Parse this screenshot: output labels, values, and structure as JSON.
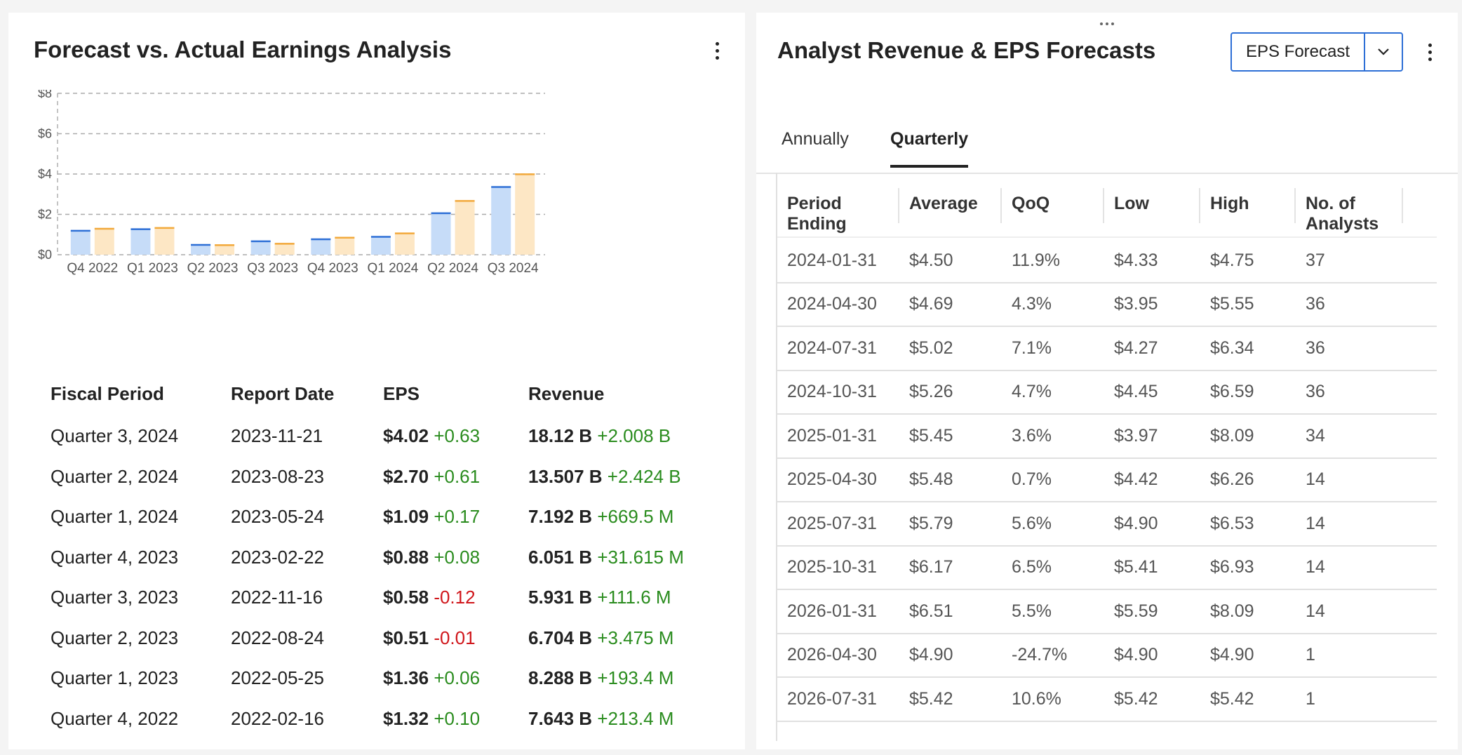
{
  "left": {
    "title": "Forecast vs. Actual Earnings Analysis",
    "table_headers": [
      "Fiscal Period",
      "Report Date",
      "EPS",
      "Revenue"
    ],
    "rows": [
      {
        "period": "Quarter 3, 2024",
        "date": "2023-11-21",
        "eps": "$4.02",
        "eps_diff": "+0.63",
        "eps_dir": "pos",
        "revenue": "18.12 B",
        "rev_diff": "+2.008 B",
        "rev_dir": "pos"
      },
      {
        "period": "Quarter 2, 2024",
        "date": "2023-08-23",
        "eps": "$2.70",
        "eps_diff": "+0.61",
        "eps_dir": "pos",
        "revenue": "13.507 B",
        "rev_diff": "+2.424 B",
        "rev_dir": "pos"
      },
      {
        "period": "Quarter 1, 2024",
        "date": "2023-05-24",
        "eps": "$1.09",
        "eps_diff": "+0.17",
        "eps_dir": "pos",
        "revenue": "7.192 B",
        "rev_diff": "+669.5 M",
        "rev_dir": "pos"
      },
      {
        "period": "Quarter 4, 2023",
        "date": "2023-02-22",
        "eps": "$0.88",
        "eps_diff": "+0.08",
        "eps_dir": "pos",
        "revenue": "6.051 B",
        "rev_diff": "+31.615 M",
        "rev_dir": "pos"
      },
      {
        "period": "Quarter 3, 2023",
        "date": "2022-11-16",
        "eps": "$0.58",
        "eps_diff": "-0.12",
        "eps_dir": "neg",
        "revenue": "5.931 B",
        "rev_diff": "+111.6 M",
        "rev_dir": "pos"
      },
      {
        "period": "Quarter 2, 2023",
        "date": "2022-08-24",
        "eps": "$0.51",
        "eps_diff": "-0.01",
        "eps_dir": "neg",
        "revenue": "6.704 B",
        "rev_diff": "+3.475 M",
        "rev_dir": "pos"
      },
      {
        "period": "Quarter 1, 2023",
        "date": "2022-05-25",
        "eps": "$1.36",
        "eps_diff": "+0.06",
        "eps_dir": "pos",
        "revenue": "8.288 B",
        "rev_diff": "+193.4 M",
        "rev_dir": "pos"
      },
      {
        "period": "Quarter 4, 2022",
        "date": "2022-02-16",
        "eps": "$1.32",
        "eps_diff": "+0.10",
        "eps_dir": "pos",
        "revenue": "7.643 B",
        "rev_diff": "+213.4 M",
        "rev_dir": "pos"
      }
    ]
  },
  "chart_data": {
    "type": "bar",
    "categories": [
      "Q4 2022",
      "Q1 2023",
      "Q2 2023",
      "Q3 2023",
      "Q4 2023",
      "Q1 2024",
      "Q2 2024",
      "Q3 2024"
    ],
    "series": [
      {
        "values": [
          1.22,
          1.3,
          0.52,
          0.7,
          0.8,
          0.92,
          2.09,
          3.39
        ],
        "color": "#c6dcf8",
        "line_color": "#2d6fd6"
      },
      {
        "values": [
          1.32,
          1.36,
          0.51,
          0.58,
          0.88,
          1.09,
          2.7,
          4.02
        ],
        "color": "#fde7c5",
        "line_color": "#f2a93b"
      }
    ],
    "yticks": [
      "$0",
      "$2",
      "$4",
      "$6",
      "$8"
    ],
    "ylim": [
      0,
      8
    ],
    "grid": true
  },
  "right": {
    "title": "Analyst Revenue & EPS Forecasts",
    "select_value": "EPS Forecast",
    "tabs": [
      "Annually",
      "Quarterly"
    ],
    "active_tab": "Quarterly",
    "headers": [
      [
        "Period",
        "Ending"
      ],
      [
        "Average"
      ],
      [
        "QoQ"
      ],
      [
        "Low"
      ],
      [
        "High"
      ],
      [
        "No. of",
        "Analysts"
      ]
    ],
    "rows": [
      [
        "2024-01-31",
        "$4.50",
        "11.9%",
        "$4.33",
        "$4.75",
        "37"
      ],
      [
        "2024-04-30",
        "$4.69",
        "4.3%",
        "$3.95",
        "$5.55",
        "36"
      ],
      [
        "2024-07-31",
        "$5.02",
        "7.1%",
        "$4.27",
        "$6.34",
        "36"
      ],
      [
        "2024-10-31",
        "$5.26",
        "4.7%",
        "$4.45",
        "$6.59",
        "36"
      ],
      [
        "2025-01-31",
        "$5.45",
        "3.6%",
        "$3.97",
        "$8.09",
        "34"
      ],
      [
        "2025-04-30",
        "$5.48",
        "0.7%",
        "$4.42",
        "$6.26",
        "14"
      ],
      [
        "2025-07-31",
        "$5.79",
        "5.6%",
        "$4.90",
        "$6.53",
        "14"
      ],
      [
        "2025-10-31",
        "$6.17",
        "6.5%",
        "$5.41",
        "$6.93",
        "14"
      ],
      [
        "2026-01-31",
        "$6.51",
        "5.5%",
        "$5.59",
        "$8.09",
        "14"
      ],
      [
        "2026-04-30",
        "$4.90",
        "-24.7%",
        "$4.90",
        "$4.90",
        "1"
      ],
      [
        "2026-07-31",
        "$5.42",
        "10.6%",
        "$5.42",
        "$5.42",
        "1"
      ]
    ]
  }
}
